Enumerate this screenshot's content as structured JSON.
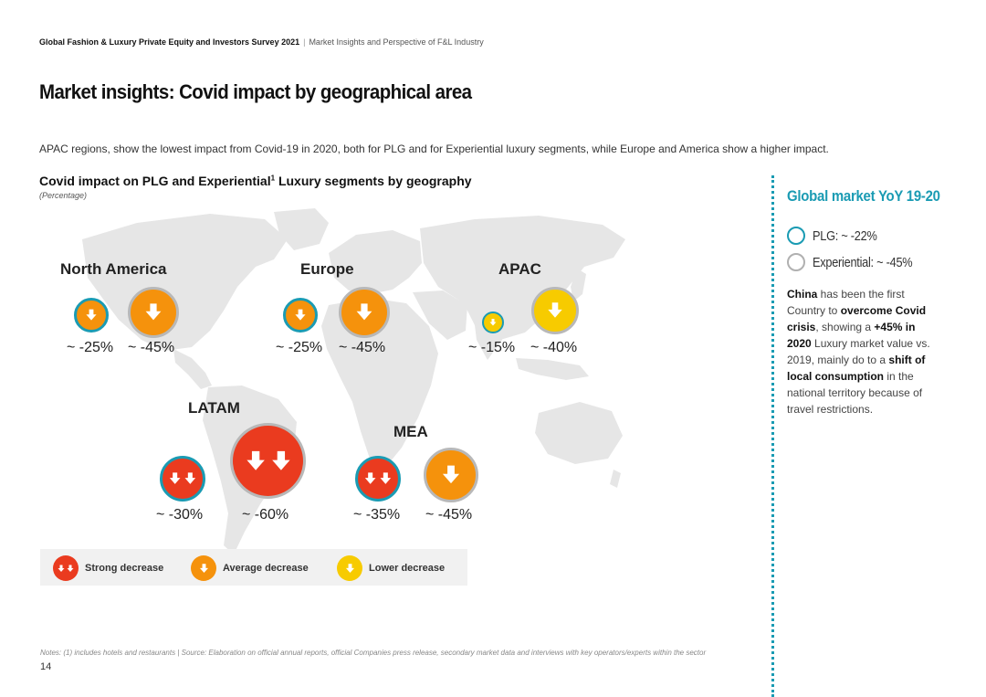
{
  "header": {
    "report": "Global Fashion & Luxury Private Equity and Investors Survey 2021",
    "separator": "|",
    "section": "Market Insights and Perspective of F&L Industry"
  },
  "page_title": "Market insights: Covid impact by geographical area",
  "intro": "APAC regions, show the lowest impact from Covid-19 in 2020, both for PLG and for Experiential luxury segments, while Europe and America show a higher impact.",
  "chart": {
    "title": "Covid impact on PLG and Experiential",
    "title_sup": "1",
    "title_suffix": " Luxury segments by geography",
    "subtitle": "(Percentage)"
  },
  "regions": [
    {
      "name": "North America",
      "plg": "~ -25%",
      "experiential": "~ -45%",
      "plg_level": "Average decrease",
      "exp_level": "Average decrease"
    },
    {
      "name": "Europe",
      "plg": "~ -25%",
      "experiential": "~ -45%",
      "plg_level": "Average decrease",
      "exp_level": "Average decrease"
    },
    {
      "name": "APAC",
      "plg": "~ -15%",
      "experiential": "~ -40%",
      "plg_level": "Lower decrease",
      "exp_level": "Lower decrease"
    },
    {
      "name": "LATAM",
      "plg": "~ -30%",
      "experiential": "~ -60%",
      "plg_level": "Strong decrease",
      "exp_level": "Strong decrease"
    },
    {
      "name": "MEA",
      "plg": "~ -35%",
      "experiential": "~ -45%",
      "plg_level": "Strong decrease",
      "exp_level": "Average decrease"
    }
  ],
  "legend": {
    "strong": "Strong decrease",
    "average": "Average decrease",
    "lower": "Lower decrease"
  },
  "sidebar": {
    "title": "Global market YoY 19-20",
    "plg": "PLG: ~ -22%",
    "experiential": "Experiential: ~ -45%",
    "text": {
      "p1": "China",
      "p2": " has been the first Country to ",
      "p3": "overcome Covid crisis",
      "p4": ", showing a ",
      "p5": "+45% in 2020",
      "p6": " Luxury market value vs. 2019, mainly do to a ",
      "p7": "shift of local consumption",
      "p8": " in the national territory because of travel restrictions."
    }
  },
  "colors": {
    "plg_ring": "#1a9bb3",
    "exp_ring": "#b8b8b8",
    "strong": "#ea3b1f",
    "average": "#f5920c",
    "lower": "#f7cb00",
    "accent": "#1a9bb3"
  },
  "notes": "Notes: (1) includes hotels and restaurants | Source: Elaboration on official annual reports, official Companies press release, secondary market data and interviews with key operators/experts within the sector",
  "page_number": "14"
}
